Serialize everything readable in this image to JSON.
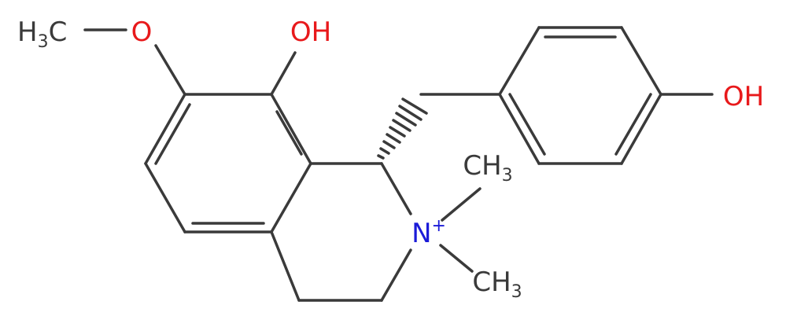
{
  "atoms": [
    {
      "label": "H3C"
    },
    {
      "label": "O"
    },
    {
      "label": "OH"
    },
    {
      "label": "OH"
    },
    {
      "label": "N+"
    },
    {
      "label": "CH3"
    },
    {
      "label": "CH3"
    }
  ]
}
